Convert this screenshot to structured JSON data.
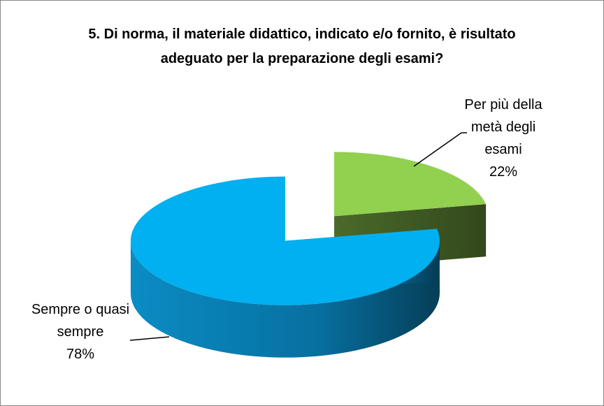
{
  "chart_data": {
    "type": "pie3d",
    "title": "5. Di norma, il materiale didattico, indicato e/o fornito, è risultato adeguato per la preparazione degli esami?",
    "categories": [
      "Per più della metà degli esami",
      "Sempre o quasi sempre"
    ],
    "values": [
      22,
      78
    ],
    "value_labels": [
      "22%",
      "78%"
    ],
    "colors": [
      "#92d050",
      "#00b0f0"
    ]
  }
}
